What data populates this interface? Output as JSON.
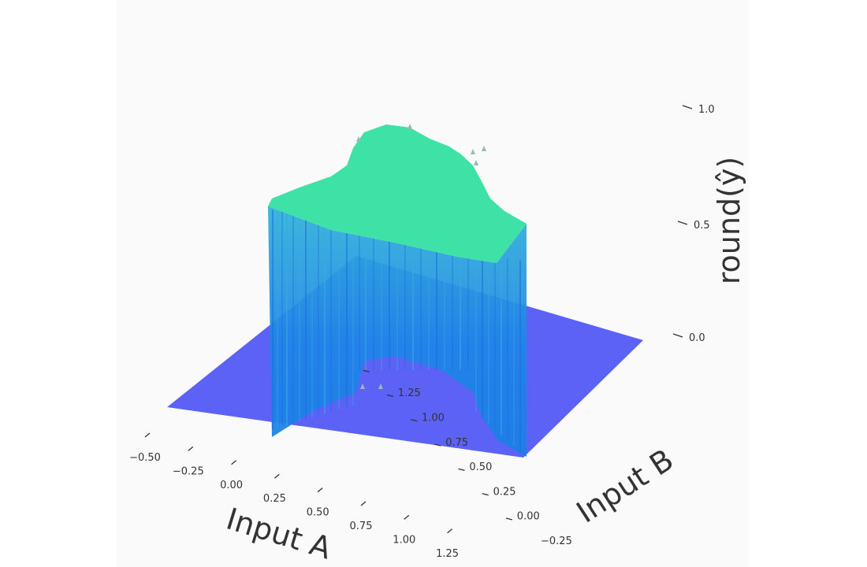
{
  "chart_data": {
    "type": "3d-surface",
    "title": "",
    "xlabel": "Input A",
    "ylabel": "Input B",
    "zlabel": "round(ŷ)",
    "x_ticks": [
      "−0.50",
      "−0.25",
      "0.00",
      "0.25",
      "0.50",
      "0.75",
      "1.00",
      "1.25"
    ],
    "y_ticks": [
      "−0.25",
      "0.00",
      "0.25",
      "0.50",
      "0.75",
      "1.00",
      "1.25"
    ],
    "z_ticks": [
      "0.0",
      "0.5",
      "1.0"
    ],
    "x_range": [
      -0.5,
      1.5
    ],
    "y_range": [
      -0.5,
      1.5
    ],
    "z_range": [
      0,
      1
    ],
    "surface_levels": [
      {
        "name": "",
        "z": 0,
        "color": "#5b62f5"
      },
      {
        "name": "",
        "z": 1,
        "color": "#3fe2a6"
      }
    ],
    "wall_color": "#1e7fe6",
    "grid": false
  }
}
